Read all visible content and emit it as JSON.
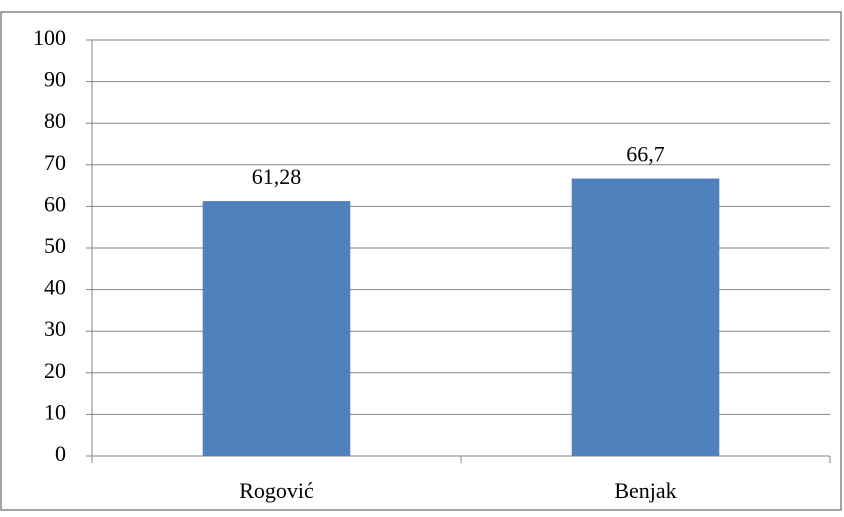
{
  "chart_data": {
    "type": "bar",
    "categories": [
      "Rogović",
      "Benjak"
    ],
    "values": [
      61.28,
      66.7
    ],
    "value_labels": [
      "61,28",
      "66,7"
    ],
    "color": "#4f81bd",
    "ylim": [
      0,
      100
    ],
    "yticks": [
      0,
      10,
      20,
      30,
      40,
      50,
      60,
      70,
      80,
      90,
      100
    ],
    "grid": true
  }
}
